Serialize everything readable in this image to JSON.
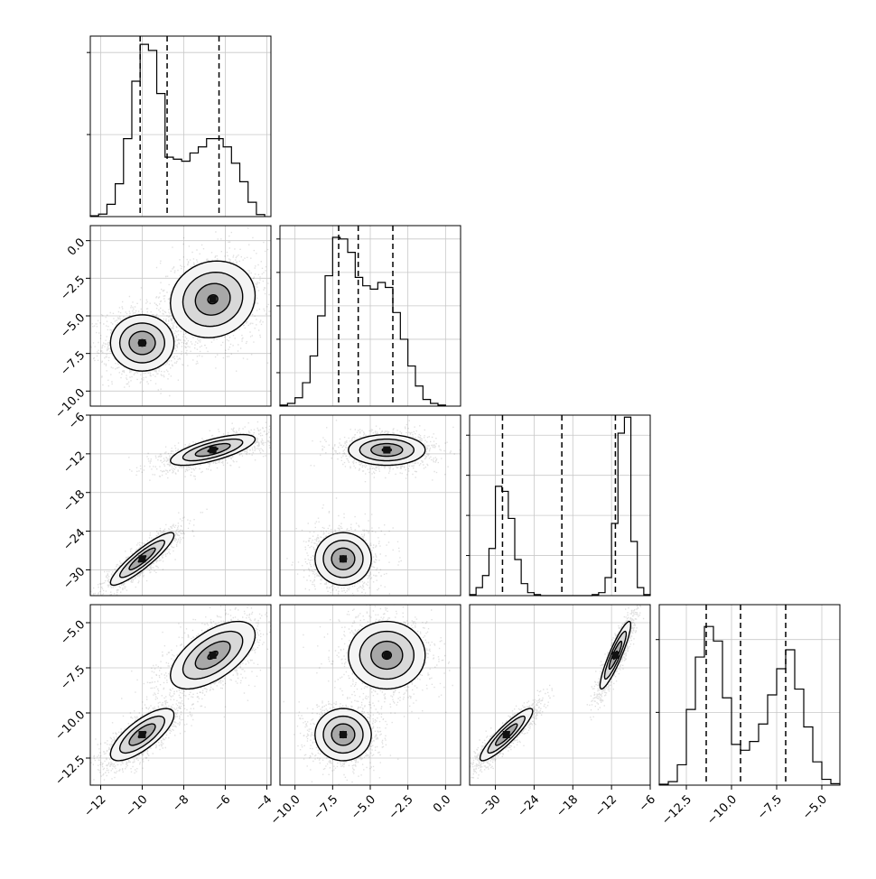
{
  "chart_data": {
    "type": "corner",
    "parameters": 4,
    "ranges": [
      [
        -12.5,
        -3.8
      ],
      [
        -11,
        1
      ],
      [
        -34,
        -6
      ],
      [
        -14,
        -4
      ]
    ],
    "diagonal": [
      {
        "type": "histogram",
        "quantiles": [
          -10.1,
          -8.8,
          -6.3
        ],
        "bins": [
          -12.5,
          -12.1,
          -11.7,
          -11.3,
          -10.9,
          -10.5,
          -10.1,
          -9.7,
          -9.3,
          -8.9,
          -8.5,
          -8.1,
          -7.7,
          -7.3,
          -6.9,
          -6.5,
          -6.1,
          -5.7,
          -5.3,
          -4.9,
          -4.5,
          -4.1
        ],
        "counts": [
          2,
          6,
          30,
          80,
          190,
          330,
          420,
          405,
          300,
          145,
          140,
          135,
          155,
          170,
          190,
          190,
          170,
          130,
          85,
          35,
          5
        ],
        "ylim": [
          0,
          440
        ],
        "yticks": [
          200,
          400
        ]
      },
      {
        "type": "histogram",
        "quantiles": [
          -7.1,
          -5.8,
          -3.5
        ],
        "bins": [
          -11,
          -10.5,
          -10,
          -9.5,
          -9,
          -8.5,
          -8,
          -7.5,
          -7,
          -6.5,
          -6,
          -5.5,
          -5,
          -4.5,
          -4,
          -3.5,
          -3,
          -2.5,
          -2,
          -1.5,
          -1,
          -0.5,
          0
        ],
        "counts": [
          3,
          8,
          25,
          70,
          150,
          270,
          390,
          505,
          500,
          460,
          385,
          360,
          350,
          370,
          355,
          280,
          200,
          120,
          60,
          20,
          8,
          3
        ],
        "ylim": [
          0,
          540
        ],
        "yticks": [
          100,
          200,
          300,
          400,
          500
        ]
      },
      {
        "type": "histogram",
        "quantiles": [
          -28.9,
          -19.7,
          -11.4
        ],
        "bins": [
          -34,
          -33,
          -32,
          -31,
          -30,
          -29,
          -28,
          -27,
          -26,
          -25,
          -24,
          -23,
          -22,
          -21,
          -20,
          -19,
          -18,
          -17,
          -16,
          -15,
          -14,
          -13,
          -12,
          -11,
          -10,
          -9,
          -8,
          -7,
          -6
        ],
        "counts": [
          5,
          40,
          100,
          235,
          545,
          520,
          385,
          180,
          60,
          15,
          5,
          0,
          0,
          0,
          0,
          0,
          0,
          0,
          0,
          5,
          15,
          90,
          360,
          810,
          890,
          270,
          40,
          5
        ],
        "ylim": [
          0,
          900
        ],
        "yticks": [
          200,
          400,
          600,
          800
        ]
      },
      {
        "type": "histogram",
        "quantiles": [
          -11.4,
          -9.5,
          -7.0
        ],
        "bins": [
          -14,
          -13.5,
          -13,
          -12.5,
          -12,
          -11.5,
          -11,
          -10.5,
          -10,
          -9.5,
          -9,
          -8.5,
          -8,
          -7.5,
          -7,
          -6.5,
          -6,
          -5.5,
          -5,
          -4.5,
          -4
        ],
        "counts": [
          3,
          12,
          70,
          260,
          440,
          545,
          495,
          300,
          140,
          120,
          150,
          210,
          310,
          400,
          465,
          330,
          200,
          80,
          20,
          5
        ],
        "ylim": [
          0,
          620
        ],
        "yticks": [
          250,
          500
        ]
      }
    ],
    "density_panels": [
      {
        "row": 1,
        "col": 0,
        "clusters": [
          {
            "mx": -10,
            "my": -6.8,
            "sx": 0.9,
            "sy": 1.1,
            "rho": 0
          },
          {
            "mx": -6.6,
            "my": -3.9,
            "sx": 1.2,
            "sy": 1.5,
            "rho": 0.1
          }
        ]
      },
      {
        "row": 2,
        "col": 0,
        "clusters": [
          {
            "mx": -10,
            "my": -28.3,
            "sx": 0.9,
            "sy": 2.4,
            "rho": 0.9
          },
          {
            "mx": -6.6,
            "my": -11.4,
            "sx": 1.2,
            "sy": 1.4,
            "rho": 0.7
          }
        ]
      },
      {
        "row": 2,
        "col": 1,
        "clusters": [
          {
            "mx": -6.8,
            "my": -28.3,
            "sx": 1.1,
            "sy": 2.4,
            "rho": 0
          },
          {
            "mx": -3.9,
            "my": -11.4,
            "sx": 1.5,
            "sy": 1.4,
            "rho": 0
          }
        ]
      },
      {
        "row": 3,
        "col": 0,
        "clusters": [
          {
            "mx": -10,
            "my": -11.2,
            "sx": 0.9,
            "sy": 0.85,
            "rho": 0.75
          },
          {
            "mx": -6.6,
            "my": -6.8,
            "sx": 1.2,
            "sy": 1.1,
            "rho": 0.6
          }
        ]
      },
      {
        "row": 3,
        "col": 1,
        "clusters": [
          {
            "mx": -6.8,
            "my": -11.2,
            "sx": 1.1,
            "sy": 0.85,
            "rho": 0
          },
          {
            "mx": -3.9,
            "my": -6.8,
            "sx": 1.5,
            "sy": 1.1,
            "rho": 0
          }
        ]
      },
      {
        "row": 3,
        "col": 2,
        "clusters": [
          {
            "mx": -28.3,
            "my": -11.2,
            "sx": 2.4,
            "sy": 0.85,
            "rho": 0.9
          },
          {
            "mx": -11.4,
            "my": -6.8,
            "sx": 1.4,
            "sy": 1.1,
            "rho": 0.9
          }
        ]
      }
    ],
    "row_tick_labels": [
      {
        "row": 1,
        "values": [
          0.0,
          -2.5,
          -5.0,
          -7.5,
          -10.0
        ],
        "labels": [
          "0.0",
          "−2.5",
          "−5.0",
          "−7.5",
          "−10.0"
        ]
      },
      {
        "row": 2,
        "values": [
          -6,
          -12,
          -18,
          -24,
          -30
        ],
        "labels": [
          "−6",
          "−12",
          "−18",
          "−24",
          "−30"
        ]
      },
      {
        "row": 3,
        "values": [
          -5.0,
          -7.5,
          -10.0,
          -12.5
        ],
        "labels": [
          "−5.0",
          "−7.5",
          "−10.0",
          "−12.5"
        ]
      }
    ],
    "col_tick_labels": [
      {
        "col": 0,
        "values": [
          -12,
          -10,
          -8,
          -6,
          -4
        ],
        "labels": [
          "−12",
          "−10",
          "−8",
          "−6",
          "−4"
        ]
      },
      {
        "col": 1,
        "values": [
          -10.0,
          -7.5,
          -5.0,
          -2.5,
          0.0
        ],
        "labels": [
          "−10.0",
          "−7.5",
          "−5.0",
          "−2.5",
          "0.0"
        ]
      },
      {
        "col": 2,
        "values": [
          -30,
          -24,
          -18,
          -12,
          -6
        ],
        "labels": [
          "−30",
          "−24",
          "−18",
          "−12",
          "−6"
        ]
      },
      {
        "col": 3,
        "values": [
          -12.5,
          -10.0,
          -7.5,
          -5.0
        ],
        "labels": [
          "−12.5",
          "−10.0",
          "−7.5",
          "−5.0"
        ]
      }
    ],
    "grid": true,
    "contour_levels": [
      0.5,
      1.0,
      1.5,
      2.0
    ]
  }
}
